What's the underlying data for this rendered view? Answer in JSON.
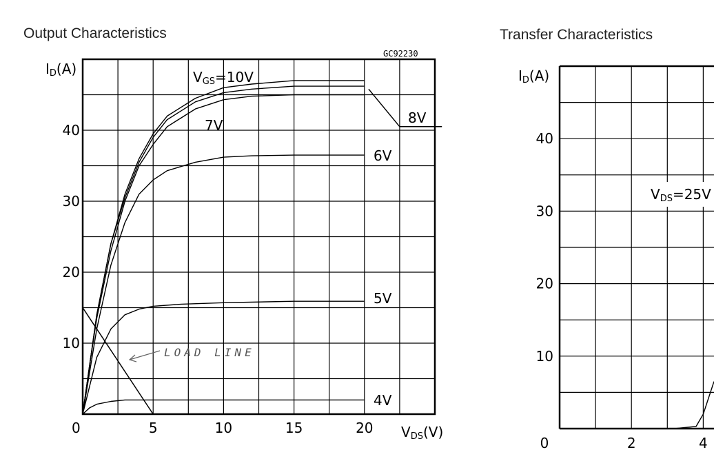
{
  "chart_data": [
    {
      "type": "line",
      "title": "Output Characteristics",
      "code": "GC92230",
      "ylabel": "ID(A)",
      "xlabel": "VDS(V)",
      "xlim": [
        0,
        25
      ],
      "ylim": [
        0,
        50
      ],
      "x_ticks": [
        "0",
        "5",
        "10",
        "15",
        "20"
      ],
      "y_ticks": [
        "10",
        "20",
        "30",
        "40"
      ],
      "grid": true,
      "series": [
        {
          "name": "VGS=10V",
          "points": [
            [
              0,
              0
            ],
            [
              0.5,
              7
            ],
            [
              1,
              14
            ],
            [
              2,
              24
            ],
            [
              3,
              31
            ],
            [
              4,
              36
            ],
            [
              5,
              39.5
            ],
            [
              6,
              42
            ],
            [
              8,
              44.5
            ],
            [
              10,
              46
            ],
            [
              12,
              46.5
            ],
            [
              15,
              47
            ],
            [
              20,
              47
            ]
          ]
        },
        {
          "name": "8V",
          "points": [
            [
              0,
              0
            ],
            [
              0.5,
              7
            ],
            [
              1,
              14
            ],
            [
              2,
              24
            ],
            [
              3,
              30.5
            ],
            [
              4,
              35.5
            ],
            [
              5,
              39
            ],
            [
              6,
              41.5
            ],
            [
              8,
              44
            ],
            [
              10,
              45.3
            ],
            [
              12,
              45.8
            ],
            [
              15,
              46.2
            ],
            [
              20,
              46.2
            ]
          ]
        },
        {
          "name": "7V",
          "points": [
            [
              0,
              0
            ],
            [
              0.5,
              7
            ],
            [
              1,
              13.5
            ],
            [
              2,
              23
            ],
            [
              3,
              30
            ],
            [
              4,
              35
            ],
            [
              5,
              38
            ],
            [
              6,
              40.5
            ],
            [
              8,
              43
            ],
            [
              10,
              44.3
            ],
            [
              12,
              44.8
            ],
            [
              15,
              45
            ],
            [
              20,
              45
            ]
          ]
        },
        {
          "name": "6V",
          "points": [
            [
              0,
              0
            ],
            [
              0.5,
              6
            ],
            [
              1,
              12
            ],
            [
              2,
              21
            ],
            [
              3,
              27
            ],
            [
              4,
              31
            ],
            [
              5,
              33
            ],
            [
              6,
              34.3
            ],
            [
              8,
              35.5
            ],
            [
              10,
              36.2
            ],
            [
              12,
              36.4
            ],
            [
              15,
              36.5
            ],
            [
              20,
              36.5
            ]
          ]
        },
        {
          "name": "5V",
          "points": [
            [
              0,
              0
            ],
            [
              0.5,
              4
            ],
            [
              1,
              8
            ],
            [
              2,
              12
            ],
            [
              3,
              14
            ],
            [
              4,
              14.8
            ],
            [
              5,
              15.2
            ],
            [
              7,
              15.5
            ],
            [
              10,
              15.7
            ],
            [
              15,
              15.9
            ],
            [
              20,
              15.9
            ]
          ]
        },
        {
          "name": "4V",
          "points": [
            [
              0,
              0
            ],
            [
              0.5,
              0.9
            ],
            [
              1,
              1.4
            ],
            [
              2,
              1.8
            ],
            [
              3,
              2
            ],
            [
              5,
              2
            ],
            [
              10,
              2
            ],
            [
              20,
              2
            ]
          ]
        }
      ],
      "annotations": [
        {
          "text": "LOAD LINE",
          "line": [
            [
              0,
              15
            ],
            [
              5,
              0
            ]
          ]
        },
        {
          "text": "8V",
          "leader": [
            [
              20.3,
              45.8
            ],
            [
              22.5,
              40.5
            ],
            [
              25.5,
              40.5
            ]
          ]
        }
      ]
    },
    {
      "type": "line",
      "title": "Transfer Characteristics",
      "ylabel": "ID(A)",
      "x_ticks": [
        "0",
        "2",
        "4"
      ],
      "y_ticks": [
        "10",
        "20",
        "30",
        "40"
      ],
      "xlim": [
        0,
        4.3
      ],
      "ylim": [
        0,
        50
      ],
      "grid": true,
      "annotations": [
        {
          "text": "VDS=25V"
        }
      ],
      "series": [
        {
          "name": "VDS=25V",
          "points": [
            [
              3.2,
              0
            ],
            [
              3.8,
              0.3
            ],
            [
              4.0,
              2
            ],
            [
              4.2,
              5
            ],
            [
              4.3,
              6.5
            ]
          ]
        }
      ]
    }
  ]
}
